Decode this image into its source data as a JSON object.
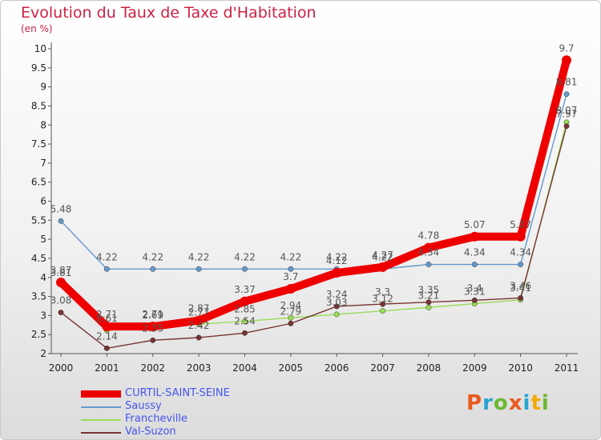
{
  "header": {
    "title": "Evolution du Taux de Taxe d'Habitation",
    "unit": "(en %)"
  },
  "logo": {
    "text": "Proxiti",
    "colors": [
      "#e85a1e",
      "#2aa3cf",
      "#6ab82e",
      "#e85a1e",
      "#2aa3cf",
      "#f2a900",
      "#6ab82e"
    ]
  },
  "chart_data": {
    "type": "line",
    "x": [
      "2000",
      "2001",
      "2002",
      "2003",
      "2004",
      "2005",
      "2006",
      "2007",
      "2008",
      "2009",
      "2010",
      "2011"
    ],
    "ylim": [
      2,
      10
    ],
    "yticks": [
      "2",
      "2.5",
      "3",
      "3.5",
      "4",
      "4.5",
      "5",
      "5.5",
      "6",
      "6.5",
      "7",
      "7.5",
      "8",
      "8.5",
      "9",
      "9.5",
      "10"
    ],
    "grid": false,
    "legend": "bottom-left",
    "series": [
      {
        "name": "CURTIL-SAINT-SEINE",
        "color": "#ee0000",
        "values": [
          3.87,
          2.71,
          2.71,
          2.87,
          3.37,
          3.7,
          4.12,
          4.27,
          4.78,
          5.07,
          5.07,
          9.7
        ],
        "labels": [
          "3.87",
          "2.71",
          "2.71",
          "2.87",
          "3.37",
          "3.7",
          "4.12",
          "4.27",
          "4.78",
          "5.07",
          "5.07",
          "9.7"
        ]
      },
      {
        "name": "Saussy",
        "color": "#6699cc",
        "values": [
          5.48,
          4.22,
          4.22,
          4.22,
          4.22,
          4.22,
          4.22,
          4.22,
          4.34,
          4.34,
          4.34,
          8.81
        ],
        "labels": [
          "5.48",
          "4.22",
          "4.22",
          "4.22",
          "4.22",
          "4.22",
          "4.22",
          "4.22",
          "4.34",
          "4.34",
          "4.34",
          "8.81"
        ]
      },
      {
        "name": "Francheville",
        "color": "#99dd55",
        "values": [
          3.81,
          2.61,
          2.69,
          2.77,
          2.85,
          2.94,
          3.03,
          3.12,
          3.21,
          3.31,
          3.41,
          8.07
        ],
        "labels": [
          "3.81",
          "2.61",
          "2.69",
          "2.77",
          "2.85",
          "2.94",
          "3.03",
          "3.12",
          "3.21",
          "3.31",
          "3.41",
          "8.07"
        ]
      },
      {
        "name": "Val-Suzon",
        "color": "#773333",
        "values": [
          3.08,
          2.14,
          2.35,
          2.42,
          2.54,
          2.79,
          3.24,
          3.3,
          3.35,
          3.4,
          3.46,
          7.97
        ],
        "labels": [
          "3.08",
          "2.14",
          "2.35",
          "2.42",
          "2.54",
          "2.79",
          "3.24",
          "3.3",
          "3.35",
          "3.4",
          "3.46",
          "7.97"
        ]
      }
    ]
  }
}
